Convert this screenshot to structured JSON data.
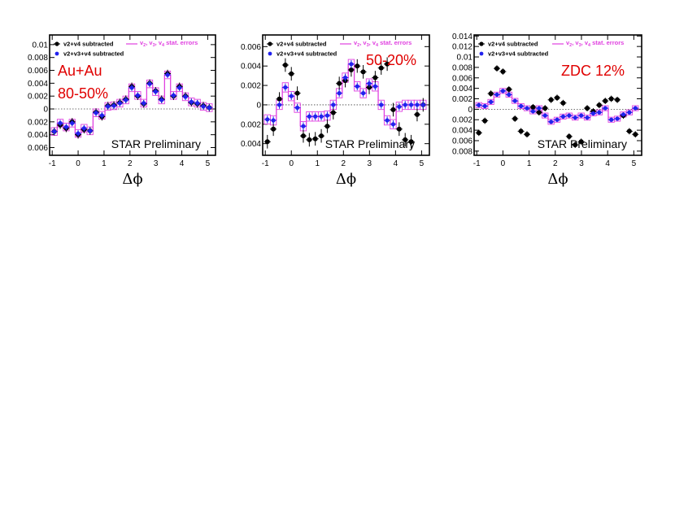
{
  "chart_data": [
    {
      "type": "scatter",
      "xlabel": "Δϕ",
      "xlim": [
        -1.1,
        5.3
      ],
      "ylim": [
        -0.0072,
        0.0115
      ],
      "xticks": [
        -1,
        0,
        1,
        2,
        3,
        4,
        5
      ],
      "yticks": [
        -0.006,
        -0.004,
        -0.002,
        0,
        0.002,
        0.004,
        0.006,
        0.008,
        0.01
      ],
      "ytick_labels": [
        "0.006",
        "0.004",
        "0.002",
        "0",
        "0.002",
        "0.004",
        "0.006",
        "0.008",
        "0.01"
      ],
      "legend": {
        "black": "v2+v4 subtracted",
        "blue": "v2+v3+v4 subtracted",
        "magenta_prefix": "v",
        "magenta_subs": [
          "2",
          "3",
          "4"
        ],
        "magenta_sep": ", ",
        "magenta_suffix": " stat. errors"
      },
      "annotations": [
        "Au+Au",
        "80-50%"
      ],
      "watermark": "STAR Preliminary",
      "x": [
        -0.92,
        -0.69,
        -0.46,
        -0.23,
        0.0,
        0.23,
        0.46,
        0.69,
        0.92,
        1.15,
        1.38,
        1.61,
        1.84,
        2.07,
        2.3,
        2.53,
        2.76,
        2.99,
        3.22,
        3.45,
        3.68,
        3.91,
        4.14,
        4.37,
        4.6,
        4.83,
        5.06
      ],
      "series": [
        {
          "name": "v2+v4 subtracted",
          "color": "#000000",
          "values": [
            -0.0035,
            -0.0025,
            -0.003,
            -0.002,
            -0.004,
            -0.0032,
            -0.0034,
            -0.0005,
            -0.0012,
            0.0005,
            0.0006,
            0.001,
            0.0015,
            0.0035,
            0.002,
            0.0008,
            0.004,
            0.0028,
            0.0015,
            0.0055,
            0.002,
            0.0035,
            0.002,
            0.001,
            0.0008,
            0.0005,
            0.0002
          ],
          "errors": [
            0.0006,
            0.0006,
            0.0006,
            0.0006,
            0.0006,
            0.0006,
            0.0006,
            0.0006,
            0.0006,
            0.0006,
            0.0006,
            0.0006,
            0.0006,
            0.0006,
            0.0006,
            0.0006,
            0.0006,
            0.0006,
            0.0006,
            0.0006,
            0.0006,
            0.0006,
            0.0006,
            0.0006,
            0.0006,
            0.0006,
            0.0006
          ]
        },
        {
          "name": "v2+v3+v4 subtracted",
          "color": "#2222ee",
          "values": [
            -0.0035,
            -0.0022,
            -0.0028,
            -0.0022,
            -0.0038,
            -0.003,
            -0.0034,
            -0.0006,
            -0.001,
            0.0004,
            0.0005,
            0.0009,
            0.0014,
            0.0033,
            0.0021,
            0.0009,
            0.0039,
            0.0027,
            0.0014,
            0.0053,
            0.0021,
            0.0033,
            0.0019,
            0.0011,
            0.0009,
            0.0004,
            0.0002
          ],
          "errors": [
            0.0005,
            0.0005,
            0.0005,
            0.0005,
            0.0005,
            0.0005,
            0.0005,
            0.0005,
            0.0005,
            0.0005,
            0.0005,
            0.0005,
            0.0005,
            0.0005,
            0.0005,
            0.0005,
            0.0005,
            0.0005,
            0.0005,
            0.0005,
            0.0005,
            0.0005,
            0.0005,
            0.0005,
            0.0005,
            0.0005,
            0.0005
          ]
        }
      ]
    },
    {
      "type": "scatter",
      "xlabel": "Δϕ",
      "xlim": [
        -1.1,
        5.3
      ],
      "ylim": [
        -0.0052,
        0.0072
      ],
      "xticks": [
        -1,
        0,
        1,
        2,
        3,
        4,
        5
      ],
      "yticks": [
        -0.004,
        -0.002,
        0,
        0.002,
        0.004,
        0.006
      ],
      "ytick_labels": [
        "0.004",
        "0.002",
        "0",
        "0.002",
        "0.004",
        "0.006"
      ],
      "legend": {
        "black": "v2+v4 subtracted",
        "blue": "v2+v3+v4 subtracted",
        "magenta_prefix": "v",
        "magenta_subs": [
          "2",
          "3",
          "4"
        ],
        "magenta_sep": ", ",
        "magenta_suffix": " stat. errors"
      },
      "annotations": [
        "50-20%"
      ],
      "watermark": "STAR Preliminary",
      "x": [
        -0.92,
        -0.69,
        -0.46,
        -0.23,
        0.0,
        0.23,
        0.46,
        0.69,
        0.92,
        1.15,
        1.38,
        1.61,
        1.84,
        2.07,
        2.3,
        2.53,
        2.76,
        2.99,
        3.22,
        3.45,
        3.68,
        3.91,
        4.14,
        4.37,
        4.6,
        4.83,
        5.06
      ],
      "series": [
        {
          "name": "v2+v4 subtracted",
          "color": "#000000",
          "values": [
            -0.0038,
            -0.0025,
            0.0006,
            0.0041,
            0.0032,
            0.0012,
            -0.0032,
            -0.0036,
            -0.0035,
            -0.0032,
            -0.0022,
            -0.0008,
            0.0022,
            0.0025,
            0.0036,
            0.004,
            0.0034,
            0.0018,
            0.0028,
            0.0038,
            0.0042,
            -0.0005,
            -0.0025,
            -0.0036,
            -0.0038,
            -0.001,
            0.0
          ],
          "errors": [
            0.0007,
            0.0007,
            0.0007,
            0.0007,
            0.0007,
            0.0007,
            0.0007,
            0.0007,
            0.0007,
            0.0007,
            0.0007,
            0.0007,
            0.0007,
            0.0007,
            0.0007,
            0.0007,
            0.0007,
            0.0007,
            0.0007,
            0.0007,
            0.0007,
            0.0007,
            0.0007,
            0.0007,
            0.0007,
            0.0007,
            0.0007
          ]
        },
        {
          "name": "v2+v3+v4 subtracted",
          "color": "#2222ee",
          "values": [
            -0.0015,
            -0.0016,
            0.0,
            0.0018,
            0.0009,
            -0.0003,
            -0.0022,
            -0.0012,
            -0.0012,
            -0.0012,
            -0.0011,
            0.0,
            0.0012,
            0.0028,
            0.0042,
            0.0019,
            0.0012,
            0.0022,
            0.0019,
            0.0,
            -0.0016,
            -0.002,
            -0.0002,
            0.0,
            0.0,
            0.0,
            0.0
          ],
          "errors": [
            0.0004,
            0.0004,
            0.0004,
            0.0004,
            0.0004,
            0.0004,
            0.0004,
            0.0004,
            0.0004,
            0.0004,
            0.0004,
            0.0004,
            0.0004,
            0.0004,
            0.0004,
            0.0004,
            0.0004,
            0.0004,
            0.0004,
            0.0004,
            0.0004,
            0.0004,
            0.0004,
            0.0004,
            0.0004,
            0.0004,
            0.0004
          ]
        }
      ]
    },
    {
      "type": "scatter",
      "xlabel": "Δϕ",
      "xlim": [
        -1.1,
        5.3
      ],
      "ylim": [
        -0.0088,
        0.0142
      ],
      "xticks": [
        -1,
        0,
        1,
        2,
        3,
        4,
        5
      ],
      "yticks": [
        -0.008,
        -0.006,
        -0.004,
        -0.002,
        0,
        0.002,
        0.004,
        0.006,
        0.008,
        0.01,
        0.012,
        0.014
      ],
      "ytick_labels": [
        "0.008",
        "0.006",
        "0.004",
        "0.002",
        "0",
        "0.002",
        "0.004",
        "0.006",
        "0.008",
        "0.01",
        "0.012",
        "0.014"
      ],
      "legend": {
        "black": "v2+v4 subtracted",
        "blue": "v2+v3+v4 subtracted",
        "magenta_prefix": "v",
        "magenta_subs": [
          "2",
          "3",
          "4"
        ],
        "magenta_sep": ", ",
        "magenta_suffix": " stat. errors"
      },
      "annotations": [
        "ZDC 12%"
      ],
      "watermark": "STAR Preliminary",
      "x": [
        -0.92,
        -0.69,
        -0.46,
        -0.23,
        0.0,
        0.23,
        0.46,
        0.69,
        0.92,
        1.15,
        1.38,
        1.61,
        1.84,
        2.07,
        2.3,
        2.53,
        2.76,
        2.99,
        3.22,
        3.45,
        3.68,
        3.91,
        4.14,
        4.37,
        4.6,
        4.83,
        5.06
      ],
      "series": [
        {
          "name": "v2+v4 subtracted",
          "color": "#000000",
          "values": [
            -0.0045,
            -0.0022,
            0.003,
            0.0078,
            0.0072,
            0.0038,
            -0.0018,
            -0.0042,
            -0.0048,
            0.0004,
            -0.0006,
            0.0002,
            0.0018,
            0.0022,
            0.0012,
            -0.0052,
            -0.0068,
            -0.0062,
            0.0002,
            -0.0004,
            0.0008,
            0.0016,
            0.002,
            0.0018,
            -0.0012,
            -0.0042,
            -0.0048
          ],
          "errors": [
            0.0006,
            0.0006,
            0.0006,
            0.0006,
            0.0006,
            0.0006,
            0.0006,
            0.0006,
            0.0006,
            0.0006,
            0.0006,
            0.0006,
            0.0006,
            0.0006,
            0.0006,
            0.0006,
            0.0006,
            0.0006,
            0.0006,
            0.0006,
            0.0006,
            0.0006,
            0.0006,
            0.0006,
            0.0006,
            0.0006,
            0.0006
          ]
        },
        {
          "name": "v2+v3+v4 subtracted",
          "color": "#2222ee",
          "values": [
            0.0008,
            0.0006,
            0.0014,
            0.0028,
            0.0035,
            0.0028,
            0.0016,
            0.0006,
            0.0002,
            -0.0004,
            0.0002,
            -0.0012,
            -0.0024,
            -0.002,
            -0.0014,
            -0.0012,
            -0.0016,
            -0.0012,
            -0.0016,
            -0.0008,
            -0.0006,
            0.0002,
            -0.002,
            -0.0018,
            -0.001,
            -0.0006,
            0.0002
          ],
          "errors": [
            0.0004,
            0.0004,
            0.0004,
            0.0004,
            0.0004,
            0.0004,
            0.0004,
            0.0004,
            0.0004,
            0.0004,
            0.0004,
            0.0004,
            0.0004,
            0.0004,
            0.0004,
            0.0004,
            0.0004,
            0.0004,
            0.0004,
            0.0004,
            0.0004,
            0.0004,
            0.0004,
            0.0004,
            0.0004,
            0.0004,
            0.0004
          ]
        }
      ]
    }
  ]
}
